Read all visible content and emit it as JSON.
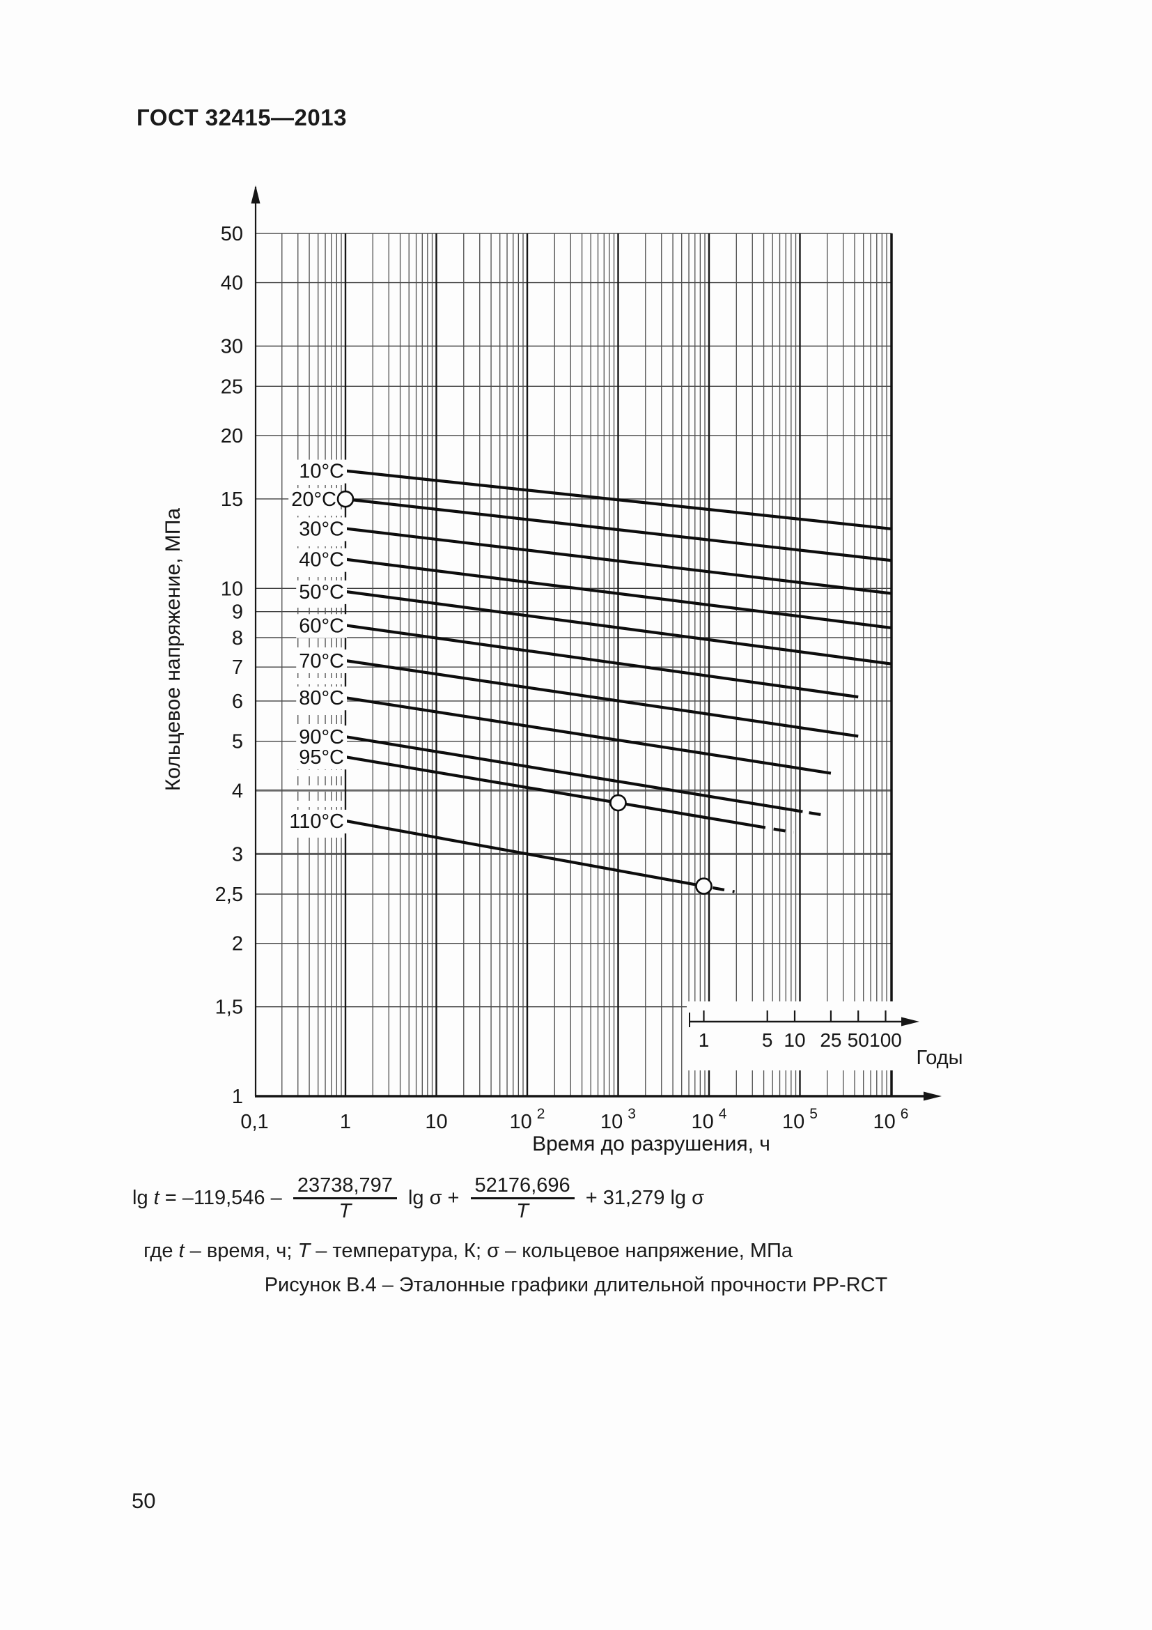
{
  "page": {
    "header": "ГОСТ 32415—2013",
    "page_number": "50",
    "caption": "Рисунок В.4 – Эталонные графики длительной прочности PP-RCT"
  },
  "formula": {
    "lg": "lg ",
    "t": "t",
    "eq": " = –119,546 – ",
    "frac1_num": "23738,797",
    "frac1_den": "T",
    "mid": " lg σ + ",
    "frac2_num": "52176,696",
    "frac2_den": "T",
    "tail": " + 31,279 lg σ",
    "where_parts": {
      "p0": "где ",
      "p1": "t",
      "p2": " – время, ч; ",
      "p3": "T",
      "p4": " – температура, К; σ – кольцевое напряжение, МПа"
    }
  },
  "chart_data": {
    "type": "line",
    "title": "",
    "x_axis": {
      "label": "Время до разрушения, ч",
      "scale": "log",
      "range_hours": [
        0.1,
        1000000
      ],
      "ticks": [
        {
          "label": "0,1",
          "value": 0.1
        },
        {
          "label": "1",
          "value": 1
        },
        {
          "label": "10",
          "value": 10
        },
        {
          "label": "10",
          "exp": "2",
          "value": 100
        },
        {
          "label": "10",
          "exp": "3",
          "value": 1000
        },
        {
          "label": "10",
          "exp": "4",
          "value": 10000
        },
        {
          "label": "10",
          "exp": "5",
          "value": 100000
        },
        {
          "label": "10",
          "exp": "6",
          "value": 1000000
        }
      ]
    },
    "y_axis": {
      "label": "Кольцевое напряжение, МПа",
      "scale": "log",
      "range_mpa": [
        1,
        50
      ],
      "ticks": [
        {
          "label": "50",
          "value": 50
        },
        {
          "label": "40",
          "value": 40
        },
        {
          "label": "30",
          "value": 30
        },
        {
          "label": "25",
          "value": 25
        },
        {
          "label": "20",
          "value": 20
        },
        {
          "label": "15",
          "value": 15
        },
        {
          "label": "10",
          "value": 10
        },
        {
          "label": "9",
          "value": 9
        },
        {
          "label": "8",
          "value": 8
        },
        {
          "label": "7",
          "value": 7
        },
        {
          "label": "6",
          "value": 6
        },
        {
          "label": "5",
          "value": 5
        },
        {
          "label": "4",
          "value": 4
        },
        {
          "label": "3",
          "value": 3
        },
        {
          "label": "2,5",
          "value": 2.5
        },
        {
          "label": "2",
          "value": 2
        },
        {
          "label": "1,5",
          "value": 1.5
        },
        {
          "label": "1",
          "value": 1
        }
      ]
    },
    "years_axis": {
      "label": "Годы",
      "hours_per_year": 8760,
      "ticks": [
        {
          "label": "1",
          "years": 1
        },
        {
          "label": "5",
          "years": 5
        },
        {
          "label": "10",
          "years": 10
        },
        {
          "label": "25",
          "years": 25
        },
        {
          "label": "50",
          "years": 50
        },
        {
          "label": "100",
          "years": 100
        }
      ]
    },
    "model": {
      "equation": "lg t = −119,546 − (23738,797/T)·lg σ + 52176,696/T + 31,279·lg σ",
      "coefficients": {
        "const": -119.546,
        "inv_T": 52176.696,
        "lg_sigma": 31.279,
        "lg_sigma_inv_T": -23738.797
      },
      "temperature_unit": "K",
      "time_unit": "h",
      "stress_unit": "MPa"
    },
    "series": [
      {
        "label": "10°C",
        "temperature_c": 10,
        "solid_lgt_range": [
          0,
          6.0
        ],
        "dash_lgt_range": null,
        "sigma_mpa_start": 17.0,
        "sigma_mpa_end": 13.1
      },
      {
        "label": "20°C",
        "temperature_c": 20,
        "solid_lgt_range": [
          0,
          6.0
        ],
        "dash_lgt_range": null,
        "sigma_mpa_start": 15.0,
        "sigma_mpa_end": 11.4
      },
      {
        "label": "30°C",
        "temperature_c": 30,
        "solid_lgt_range": [
          0,
          6.0
        ],
        "dash_lgt_range": null,
        "sigma_mpa_start": 13.1,
        "sigma_mpa_end": 9.8
      },
      {
        "label": "40°C",
        "temperature_c": 40,
        "solid_lgt_range": [
          0,
          6.0
        ],
        "dash_lgt_range": null,
        "sigma_mpa_start": 11.4,
        "sigma_mpa_end": 8.4
      },
      {
        "label": "50°C",
        "temperature_c": 50,
        "solid_lgt_range": [
          0,
          6.0
        ],
        "dash_lgt_range": null,
        "sigma_mpa_start": 9.9,
        "sigma_mpa_end": 7.1
      },
      {
        "label": "60°C",
        "temperature_c": 60,
        "solid_lgt_range": [
          0,
          5.6415
        ],
        "dash_lgt_range": null,
        "sigma_mpa_start": 8.5,
        "sigma_mpa_end": 6.1
      },
      {
        "label": "70°C",
        "temperature_c": 70,
        "solid_lgt_range": [
          0,
          5.6415
        ],
        "dash_lgt_range": null,
        "sigma_mpa_start": 7.2,
        "sigma_mpa_end": 5.1
      },
      {
        "label": "80°C",
        "temperature_c": 80,
        "solid_lgt_range": [
          0,
          5.3404
        ],
        "dash_lgt_range": null,
        "sigma_mpa_start": 6.1,
        "sigma_mpa_end": 4.3
      },
      {
        "label": "90°C",
        "temperature_c": 90,
        "solid_lgt_range": [
          0,
          5.03
        ],
        "dash_lgt_range": [
          5.1,
          5.24
        ],
        "sigma_mpa_start": 5.1,
        "sigma_mpa_end": 3.6
      },
      {
        "label": "95°C",
        "temperature_c": 95,
        "solid_lgt_range": [
          0,
          4.62
        ],
        "dash_lgt_range": [
          4.71,
          4.93
        ],
        "sigma_mpa_start": 4.7,
        "sigma_mpa_end": 3.4
      },
      {
        "label": "110°C",
        "temperature_c": 110,
        "solid_lgt_range": [
          0,
          3.9425
        ],
        "dash_lgt_range": [
          4.04,
          4.28
        ],
        "sigma_mpa_start": 3.5,
        "sigma_mpa_end": 2.6
      }
    ],
    "markers": [
      {
        "on_series": "20°C",
        "t_hours": 1,
        "sigma_mpa": 15.0
      },
      {
        "on_series": "95°C",
        "t_hours": 1000,
        "sigma_mpa": 3.8
      },
      {
        "on_series": "110°C",
        "t_hours": 8760,
        "sigma_mpa": 2.6
      }
    ]
  }
}
